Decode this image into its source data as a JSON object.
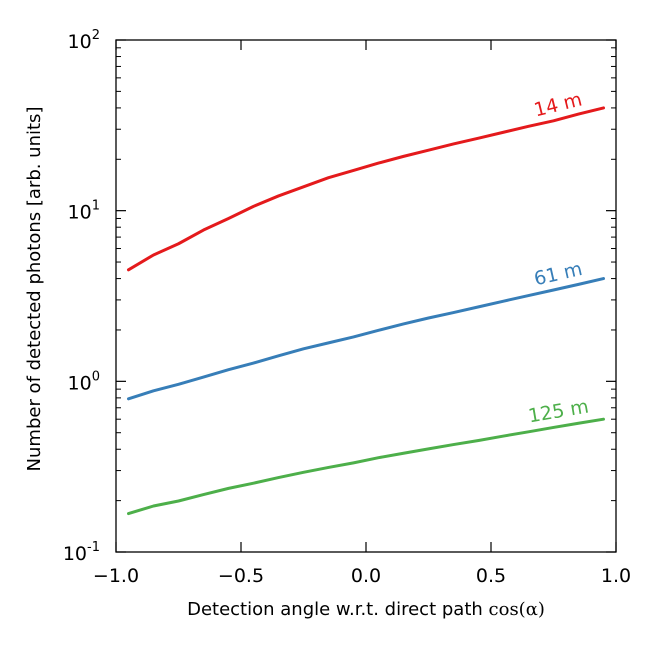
{
  "chart_data": {
    "type": "line",
    "xlabel_text": "Detection angle w.r.t. direct path",
    "xlabel_math": "cos(α)",
    "ylabel": "Number of detected photons [arb. units]",
    "xlim": [
      -1.0,
      1.0
    ],
    "ylim": [
      0.1,
      100
    ],
    "yscale": "log",
    "grid": false,
    "xticks": [
      {
        "value": -1.0,
        "label": "−1.0"
      },
      {
        "value": -0.5,
        "label": "−0.5"
      },
      {
        "value": 0.0,
        "label": "0.0"
      },
      {
        "value": 0.5,
        "label": "0.5"
      },
      {
        "value": 1.0,
        "label": "1.0"
      }
    ],
    "yticks": [
      {
        "value": 0.1,
        "base": "10",
        "exp": "-1"
      },
      {
        "value": 1,
        "base": "10",
        "exp": "0"
      },
      {
        "value": 10,
        "base": "10",
        "exp": "1"
      },
      {
        "value": 100,
        "base": "10",
        "exp": "2"
      }
    ],
    "x": [
      -0.95,
      -0.85,
      -0.75,
      -0.65,
      -0.55,
      -0.45,
      -0.35,
      -0.25,
      -0.15,
      -0.05,
      0.05,
      0.15,
      0.25,
      0.35,
      0.45,
      0.55,
      0.65,
      0.75,
      0.85,
      0.95
    ],
    "series": [
      {
        "name": "14 m",
        "color": "#e41a1c",
        "values": [
          4.5,
          5.5,
          6.4,
          7.7,
          9.0,
          10.6,
          12.2,
          13.8,
          15.6,
          17.2,
          19.0,
          20.8,
          22.6,
          24.6,
          26.6,
          28.8,
          31.2,
          33.6,
          36.8,
          40.0
        ]
      },
      {
        "name": "61 m",
        "color": "#377eb8",
        "values": [
          0.79,
          0.88,
          0.96,
          1.06,
          1.17,
          1.28,
          1.41,
          1.55,
          1.68,
          1.82,
          1.99,
          2.17,
          2.35,
          2.53,
          2.73,
          2.95,
          3.18,
          3.43,
          3.7,
          4.0
        ]
      },
      {
        "name": "125 m",
        "color": "#4daf4a",
        "values": [
          0.168,
          0.186,
          0.199,
          0.217,
          0.236,
          0.253,
          0.273,
          0.293,
          0.313,
          0.333,
          0.357,
          0.379,
          0.402,
          0.426,
          0.45,
          0.478,
          0.506,
          0.537,
          0.568,
          0.6
        ]
      }
    ]
  }
}
